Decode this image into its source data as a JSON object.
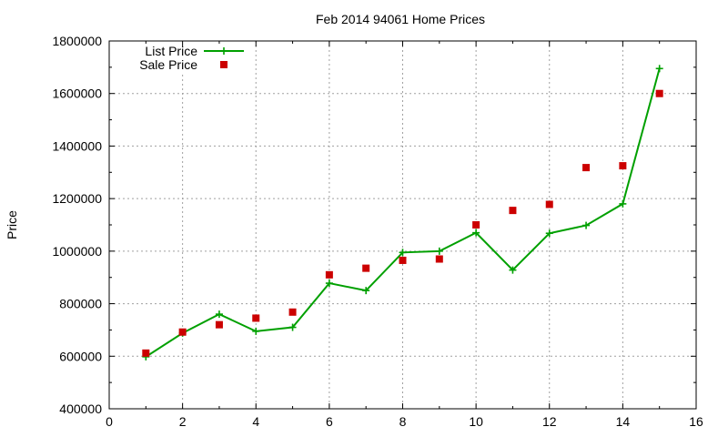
{
  "chart_data": {
    "type": "scatter",
    "title": "Feb 2014 94061 Home Prices",
    "xlabel": "",
    "ylabel": "Price",
    "xlim": [
      0,
      16
    ],
    "ylim": [
      400000,
      1800000
    ],
    "xticks": [
      0,
      2,
      4,
      6,
      8,
      10,
      12,
      14,
      16
    ],
    "yticks": [
      400000,
      600000,
      800000,
      1000000,
      1200000,
      1400000,
      1600000,
      1800000
    ],
    "grid": true,
    "legend_position": "top-left",
    "series": [
      {
        "name": "List Price",
        "style": "line+plus-markers",
        "color": "#00a000",
        "x": [
          1,
          2,
          3,
          4,
          5,
          6,
          7,
          8,
          9,
          10,
          11,
          12,
          13,
          14,
          15
        ],
        "values": [
          598000,
          688000,
          760000,
          695000,
          710000,
          878000,
          850000,
          995000,
          1000000,
          1070000,
          928000,
          1068000,
          1098000,
          1180000,
          1695000
        ]
      },
      {
        "name": "Sale Price",
        "style": "square-markers",
        "color": "#cc0000",
        "x": [
          1,
          2,
          3,
          4,
          5,
          6,
          7,
          8,
          9,
          10,
          11,
          12,
          13,
          14,
          15
        ],
        "values": [
          612000,
          692000,
          720000,
          745000,
          768000,
          910000,
          935000,
          965000,
          970000,
          1100000,
          1155000,
          1178000,
          1318000,
          1325000,
          1600000
        ]
      }
    ]
  }
}
